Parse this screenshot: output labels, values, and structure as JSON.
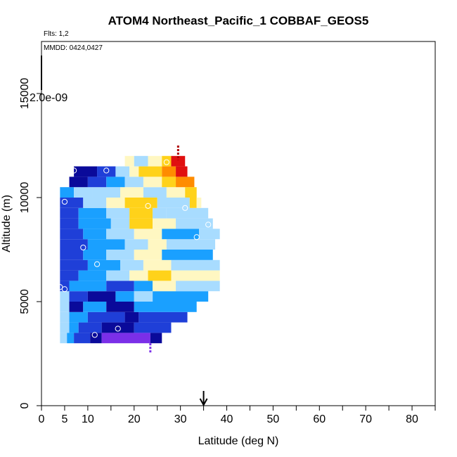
{
  "chart_data": {
    "type": "heatmap",
    "title": "ATOM4 Northeast_Pacific_1 COBBAF_GEOS5",
    "flights_note": "Flts: 1,2",
    "date_note": "MMDD: 0424,0427",
    "scale_label": "2.0e-09",
    "xlabel": "Latitude (deg N)",
    "ylabel": "Altitude (m)",
    "xlim": [
      0,
      85
    ],
    "ylim": [
      0,
      17500
    ],
    "xticks": [
      "0",
      "5",
      "10",
      "20",
      "30",
      "40",
      "50",
      "60",
      "70",
      "80"
    ],
    "yticks": [
      "0",
      "5000",
      "10000",
      "15000"
    ],
    "arrow_latitude": 35,
    "grid": false,
    "colors": {
      "purple": "#7b2fe8",
      "navy": "#0a0a9a",
      "blue": "#1f3fd8",
      "sky": "#1aa0ff",
      "light_blue": "#a8dcff",
      "pale": "#fff7c2",
      "yellow": "#ffd21a",
      "orange": "#ff8c00",
      "red": "#e01010",
      "dark_red": "#b00000"
    },
    "rows": [
      {
        "alt": [
          3000,
          3500
        ],
        "segments": [
          [
            4,
            5.5,
            "light_blue"
          ],
          [
            5.5,
            7,
            "sky"
          ],
          [
            7,
            10.5,
            "blue"
          ],
          [
            10.5,
            13,
            "navy"
          ],
          [
            13,
            23.5,
            "purple"
          ],
          [
            23.5,
            26,
            "navy"
          ]
        ]
      },
      {
        "alt": [
          3500,
          4000
        ],
        "segments": [
          [
            4,
            6,
            "light_blue"
          ],
          [
            6,
            8,
            "sky"
          ],
          [
            8,
            13,
            "blue"
          ],
          [
            13,
            20,
            "navy"
          ],
          [
            20,
            28,
            "blue"
          ]
        ]
      },
      {
        "alt": [
          4000,
          4500
        ],
        "segments": [
          [
            4,
            6,
            "light_blue"
          ],
          [
            6,
            10,
            "sky"
          ],
          [
            10,
            18,
            "blue"
          ],
          [
            18,
            21,
            "navy"
          ],
          [
            21,
            31.5,
            "blue"
          ]
        ]
      },
      {
        "alt": [
          4500,
          5000
        ],
        "segments": [
          [
            4,
            6,
            "light_blue"
          ],
          [
            6,
            9,
            "navy"
          ],
          [
            9,
            14,
            "sky"
          ],
          [
            14,
            20,
            "navy"
          ],
          [
            20,
            33.5,
            "sky"
          ]
        ]
      },
      {
        "alt": [
          5000,
          5500
        ],
        "segments": [
          [
            4,
            6,
            "light_blue"
          ],
          [
            6,
            10,
            "blue"
          ],
          [
            10,
            16,
            "navy"
          ],
          [
            16,
            20,
            "sky"
          ],
          [
            20,
            24,
            "light_blue"
          ],
          [
            24,
            36,
            "sky"
          ]
        ]
      },
      {
        "alt": [
          5500,
          6000
        ],
        "segments": [
          [
            4,
            6,
            "blue"
          ],
          [
            6,
            14,
            "sky"
          ],
          [
            14,
            20,
            "blue"
          ],
          [
            20,
            24,
            "sky"
          ],
          [
            24,
            29,
            "pale"
          ],
          [
            29,
            38.5,
            "light_blue"
          ]
        ]
      },
      {
        "alt": [
          6000,
          6500
        ],
        "segments": [
          [
            4,
            8,
            "blue"
          ],
          [
            8,
            14,
            "sky"
          ],
          [
            14,
            19,
            "light_blue"
          ],
          [
            19,
            23,
            "pale"
          ],
          [
            23,
            28,
            "yellow"
          ],
          [
            28,
            38.5,
            "pale"
          ]
        ]
      },
      {
        "alt": [
          6500,
          7000
        ],
        "segments": [
          [
            4,
            10,
            "blue"
          ],
          [
            10,
            17,
            "sky"
          ],
          [
            17,
            22,
            "light_blue"
          ],
          [
            22,
            28,
            "pale"
          ],
          [
            28,
            38.5,
            "light_blue"
          ]
        ]
      },
      {
        "alt": [
          7000,
          7500
        ],
        "segments": [
          [
            4,
            9,
            "blue"
          ],
          [
            9,
            14,
            "sky"
          ],
          [
            14,
            20,
            "light_blue"
          ],
          [
            20,
            26,
            "pale"
          ],
          [
            26,
            37,
            "sky"
          ]
        ]
      },
      {
        "alt": [
          7500,
          8000
        ],
        "segments": [
          [
            4,
            10,
            "blue"
          ],
          [
            10,
            18,
            "sky"
          ],
          [
            18,
            23,
            "light_blue"
          ],
          [
            23,
            27,
            "pale"
          ],
          [
            27,
            37.5,
            "light_blue"
          ]
        ]
      },
      {
        "alt": [
          8000,
          8500
        ],
        "segments": [
          [
            4,
            9,
            "blue"
          ],
          [
            9,
            14,
            "sky"
          ],
          [
            14,
            20,
            "light_blue"
          ],
          [
            20,
            26,
            "pale"
          ],
          [
            26,
            34,
            "sky"
          ],
          [
            34,
            38.5,
            "light_blue"
          ]
        ]
      },
      {
        "alt": [
          8500,
          9000
        ],
        "segments": [
          [
            4,
            8,
            "blue"
          ],
          [
            8,
            15,
            "sky"
          ],
          [
            15,
            19,
            "light_blue"
          ],
          [
            19,
            24,
            "yellow"
          ],
          [
            24,
            29,
            "pale"
          ],
          [
            29,
            37,
            "light_blue"
          ]
        ]
      },
      {
        "alt": [
          9000,
          9500
        ],
        "segments": [
          [
            4,
            8,
            "blue"
          ],
          [
            8,
            14,
            "sky"
          ],
          [
            14,
            19,
            "light_blue"
          ],
          [
            19,
            24,
            "yellow"
          ],
          [
            24,
            27,
            "light_blue"
          ],
          [
            27,
            36,
            "light_blue"
          ]
        ]
      },
      {
        "alt": [
          9500,
          10000
        ],
        "segments": [
          [
            4,
            9,
            "blue"
          ],
          [
            9,
            14,
            "light_blue"
          ],
          [
            14,
            18,
            "pale"
          ],
          [
            18,
            25,
            "yellow"
          ],
          [
            25,
            32,
            "light_blue"
          ],
          [
            32,
            33.5,
            "yellow"
          ],
          [
            33.5,
            34.5,
            "pale"
          ]
        ]
      },
      {
        "alt": [
          10000,
          10500
        ],
        "segments": [
          [
            4,
            7,
            "sky"
          ],
          [
            7,
            11,
            "light_blue"
          ],
          [
            11,
            17,
            "light_blue"
          ],
          [
            17,
            22,
            "pale"
          ],
          [
            22,
            27,
            "light_blue"
          ],
          [
            27,
            31,
            "pale"
          ],
          [
            31,
            33.5,
            "yellow"
          ]
        ]
      },
      {
        "alt": [
          10500,
          11000
        ],
        "segments": [
          [
            6,
            10,
            "navy"
          ],
          [
            10,
            14,
            "blue"
          ],
          [
            14,
            18,
            "sky"
          ],
          [
            18,
            22,
            "light_blue"
          ],
          [
            22,
            26,
            "pale"
          ],
          [
            26,
            29,
            "yellow"
          ],
          [
            29,
            33,
            "orange"
          ]
        ]
      },
      {
        "alt": [
          11000,
          11500
        ],
        "segments": [
          [
            7,
            12,
            "navy"
          ],
          [
            12,
            16,
            "blue"
          ],
          [
            16,
            19,
            "light_blue"
          ],
          [
            19,
            21,
            "pale"
          ],
          [
            21,
            26,
            "yellow"
          ],
          [
            26,
            29,
            "orange"
          ],
          [
            29,
            31.5,
            "red"
          ]
        ]
      },
      {
        "alt": [
          11500,
          12000
        ],
        "segments": [
          [
            18,
            20,
            "pale"
          ],
          [
            20,
            23,
            "light_blue"
          ],
          [
            23,
            26,
            "pale"
          ],
          [
            26,
            28,
            "yellow"
          ],
          [
            28,
            31,
            "red"
          ]
        ]
      }
    ],
    "circles": [
      {
        "lat": 7,
        "alt": 11300
      },
      {
        "lat": 14,
        "alt": 11300
      },
      {
        "lat": 27,
        "alt": 11700
      },
      {
        "lat": 5,
        "alt": 9800
      },
      {
        "lat": 23,
        "alt": 9600
      },
      {
        "lat": 31,
        "alt": 9500
      },
      {
        "lat": 36,
        "alt": 8700
      },
      {
        "lat": 33.5,
        "alt": 8100
      },
      {
        "lat": 9,
        "alt": 7600
      },
      {
        "lat": 12,
        "alt": 6800
      },
      {
        "lat": 4,
        "alt": 5700
      },
      {
        "lat": 5,
        "alt": 5600
      },
      {
        "lat": 16.5,
        "alt": 3700
      },
      {
        "lat": 11.5,
        "alt": 3400
      }
    ],
    "vertical_marks": [
      {
        "lat": 29.5,
        "alt_from": 11800,
        "alt_to": 12500,
        "color": "#b00000"
      },
      {
        "lat": 23.5,
        "alt_from": 2500,
        "alt_to": 3000,
        "color": "#7b2fe8"
      }
    ]
  }
}
